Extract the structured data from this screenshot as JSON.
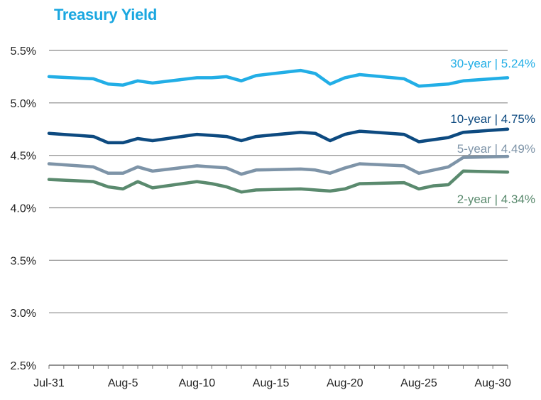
{
  "chart_data": {
    "type": "line",
    "title": "Treasury Yield",
    "xlabel": "",
    "ylabel": "",
    "ylim": [
      2.5,
      5.5
    ],
    "yticks": [
      2.5,
      3.0,
      3.5,
      4.0,
      4.5,
      5.0,
      5.5
    ],
    "ytick_labels": [
      "2.5%",
      "3.0%",
      "3.5%",
      "4.0%",
      "4.5%",
      "5.0%",
      "5.5%"
    ],
    "xtick_labels": [
      "Jul-31",
      "Aug-5",
      "Aug-10",
      "Aug-15",
      "Aug-20",
      "Aug-25",
      "Aug-30"
    ],
    "xtick_days": [
      0,
      5,
      10,
      15,
      20,
      25,
      30
    ],
    "x_days": [
      0,
      3,
      4,
      5,
      6,
      7,
      10,
      11,
      12,
      13,
      14,
      17,
      18,
      19,
      20,
      21,
      24,
      25,
      26,
      27,
      28,
      31
    ],
    "grid": true,
    "series": [
      {
        "name": "30-year | 5.24%",
        "color": "#22aee6",
        "values": [
          5.25,
          5.23,
          5.18,
          5.17,
          5.21,
          5.19,
          5.24,
          5.24,
          5.25,
          5.21,
          5.26,
          5.31,
          5.28,
          5.18,
          5.24,
          5.27,
          5.23,
          5.16,
          5.17,
          5.18,
          5.21,
          5.24
        ]
      },
      {
        "name": "10-year | 4.75%",
        "color": "#0d4a80",
        "values": [
          4.71,
          4.68,
          4.62,
          4.62,
          4.66,
          4.64,
          4.7,
          4.69,
          4.68,
          4.64,
          4.68,
          4.72,
          4.71,
          4.64,
          4.7,
          4.73,
          4.7,
          4.63,
          4.65,
          4.67,
          4.72,
          4.75
        ]
      },
      {
        "name": "5-year | 4.49%",
        "color": "#7e94a8",
        "values": [
          4.42,
          4.39,
          4.33,
          4.33,
          4.39,
          4.35,
          4.4,
          4.39,
          4.38,
          4.32,
          4.36,
          4.37,
          4.36,
          4.33,
          4.38,
          4.42,
          4.4,
          4.33,
          4.36,
          4.39,
          4.48,
          4.49
        ]
      },
      {
        "name": "2-year | 4.34%",
        "color": "#5a8a6e",
        "values": [
          4.27,
          4.25,
          4.2,
          4.18,
          4.25,
          4.19,
          4.25,
          4.23,
          4.2,
          4.15,
          4.17,
          4.18,
          4.17,
          4.16,
          4.18,
          4.23,
          4.24,
          4.18,
          4.21,
          4.22,
          4.35,
          4.34
        ]
      }
    ]
  }
}
